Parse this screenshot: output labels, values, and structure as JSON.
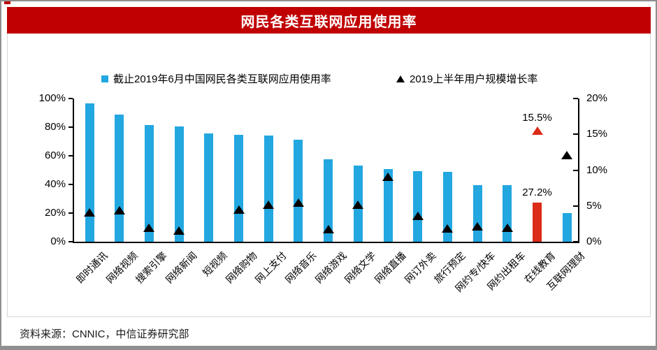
{
  "header": {
    "title": "网民各类互联网应用使用率"
  },
  "footer": {
    "source_note": "资料来源：CNNIC，中信证券研究部"
  },
  "colors": {
    "banner_red": "#c00000",
    "bar_blue": "#22a7e0",
    "highlight_red": "#db2b19",
    "marker_black": "#000000"
  },
  "chart_data": {
    "type": "bar",
    "title": "网民各类互联网应用使用率",
    "grid": false,
    "legend_position": "top",
    "categories": [
      "即时通讯",
      "网络视频",
      "搜索引擎",
      "网络新闻",
      "短视频",
      "网络购物",
      "网上支付",
      "网络音乐",
      "网络游戏",
      "网络文学",
      "网络直播",
      "网订外卖",
      "旅行预定",
      "网约专/快车",
      "网约出租车",
      "在线教育",
      "互联网理财"
    ],
    "series": [
      {
        "name": "截止2019年6月中国网民各类互联网应用使用率",
        "type": "bar",
        "axis": "left",
        "color": "#22a7e0",
        "highlight_index": 15,
        "highlight_color": "#db2b19",
        "values": [
          96.5,
          88.8,
          81.3,
          80.3,
          75.8,
          74.8,
          74.1,
          71.1,
          57.8,
          53.2,
          50.7,
          49.3,
          48.6,
          39.7,
          39.4,
          27.2,
          19.9
        ]
      },
      {
        "name": "2019上半年用户规模增长率",
        "type": "scatter-triangle",
        "axis": "right",
        "color": "#000000",
        "highlight_index": 15,
        "highlight_color": "#db2b19",
        "values": [
          4.1,
          4.4,
          2.0,
          1.6,
          null,
          4.5,
          5.2,
          5.5,
          1.8,
          5.2,
          9.1,
          3.6,
          1.9,
          2.1,
          2.0,
          15.5,
          12.1
        ]
      }
    ],
    "left_axis": {
      "min": 0,
      "max": 100,
      "ticks": [
        "0%",
        "20%",
        "40%",
        "60%",
        "80%",
        "100%"
      ]
    },
    "right_axis": {
      "min": 0,
      "max": 20,
      "ticks": [
        "0%",
        "5%",
        "10%",
        "15%",
        "20%"
      ]
    },
    "annotations": [
      {
        "text": "27.2%",
        "category_index": 15,
        "attach": "bar"
      },
      {
        "text": "15.5%",
        "category_index": 15,
        "attach": "marker"
      }
    ]
  }
}
